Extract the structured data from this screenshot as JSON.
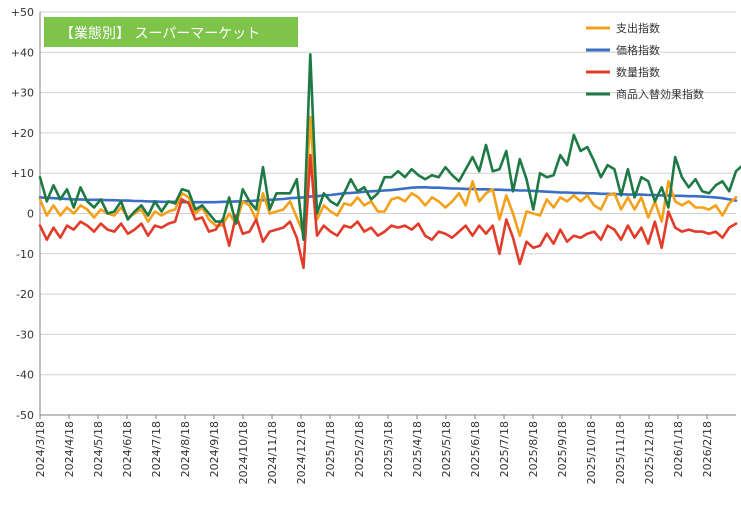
{
  "colors": {
    "spending": "#f5a01a",
    "price": "#3a6fc4",
    "quantity": "#e23b2a",
    "substitution": "#1e7a45",
    "title_box": "#7ec34a",
    "grid": "#d0d0d0",
    "axis": "#808080"
  },
  "chart_data": {
    "type": "line",
    "title": "【業態別】 スーパーマーケット",
    "xlabel": "",
    "ylabel": "",
    "ylim": [
      -50,
      50
    ],
    "y_ticks": [
      -50,
      -40,
      -30,
      -20,
      -10,
      0,
      10,
      20,
      30,
      40,
      50
    ],
    "y_tick_labels": [
      "-50",
      "-40",
      "-30",
      "-20",
      "-10",
      "0",
      "+10",
      "+20",
      "+30",
      "+40",
      "+50"
    ],
    "grid": "horizontal",
    "legend_position": "top-right",
    "x_start": "2024/3/18",
    "x_tick_labels": [
      "2024/3/18",
      "2024/4/18",
      "2024/5/18",
      "2024/6/18",
      "2024/7/18",
      "2024/8/18",
      "2024/9/18",
      "2024/10/18",
      "2024/11/18",
      "2024/12/18",
      "2025/1/18",
      "2025/2/18",
      "2025/3/18",
      "2025/4/18",
      "2025/5/18",
      "2025/6/18",
      "2025/7/18",
      "2025/8/18",
      "2025/9/18",
      "2025/10/18",
      "2025/11/18",
      "2025/12/18",
      "2026/1/18",
      "2026/2/18"
    ],
    "series": [
      {
        "name": "支出指数",
        "color_key": "spending",
        "values": [
          3.5,
          -0.5,
          2.0,
          -0.5,
          1.5,
          0.0,
          2.0,
          1.0,
          -1.0,
          1.0,
          0.0,
          -0.5,
          1.5,
          -1.0,
          0.0,
          1.0,
          -2.0,
          0.5,
          -0.5,
          0.5,
          1.0,
          5.0,
          4.0,
          0.0,
          1.5,
          -1.5,
          -3.0,
          -3.0,
          0.0,
          -2.5,
          3.0,
          2.0,
          -1.5,
          5.0,
          0.0,
          0.5,
          1.0,
          3.0,
          -1.0,
          -5.0,
          24.0,
          -1.5,
          2.0,
          0.5,
          -0.5,
          2.5,
          2.0,
          4.0,
          2.0,
          3.0,
          0.5,
          0.5,
          3.5,
          4.0,
          3.0,
          5.0,
          4.0,
          2.0,
          4.0,
          3.0,
          1.5,
          3.0,
          5.0,
          2.0,
          8.0,
          3.0,
          5.0,
          6.0,
          -1.5,
          4.5,
          0.0,
          -5.5,
          0.5,
          0.0,
          -0.5,
          3.5,
          1.5,
          4.0,
          3.0,
          4.5,
          3.0,
          4.5,
          2.0,
          1.0,
          4.5,
          5.0,
          1.0,
          4.0,
          1.0,
          4.0,
          -1.0,
          3.0,
          -2.0,
          8.0,
          3.0,
          2.0,
          3.0,
          1.5,
          1.5,
          1.0,
          2.0,
          -0.5,
          2.5,
          4.0
        ]
      },
      {
        "name": "価格指数",
        "color_key": "price",
        "values": [
          4.0,
          3.9,
          3.8,
          3.7,
          3.6,
          3.5,
          3.5,
          3.4,
          3.4,
          3.4,
          3.3,
          3.3,
          3.2,
          3.2,
          3.1,
          3.1,
          3.0,
          3.0,
          2.9,
          2.9,
          2.9,
          2.8,
          2.8,
          2.8,
          2.8,
          2.8,
          2.8,
          2.9,
          2.9,
          3.0,
          3.0,
          3.1,
          3.2,
          3.3,
          3.4,
          3.5,
          3.6,
          3.8,
          3.9,
          4.0,
          4.2,
          4.3,
          4.5,
          4.6,
          4.8,
          5.0,
          5.1,
          5.2,
          5.4,
          5.5,
          5.6,
          5.7,
          5.8,
          6.0,
          6.2,
          6.4,
          6.5,
          6.5,
          6.4,
          6.4,
          6.3,
          6.2,
          6.2,
          6.1,
          6.1,
          6.0,
          6.0,
          5.9,
          5.9,
          5.8,
          5.8,
          5.7,
          5.7,
          5.6,
          5.5,
          5.4,
          5.3,
          5.2,
          5.2,
          5.1,
          5.1,
          5.0,
          5.0,
          4.9,
          4.9,
          4.8,
          4.8,
          4.7,
          4.7,
          4.7,
          4.6,
          4.6,
          4.5,
          4.5,
          4.4,
          4.4,
          4.3,
          4.3,
          4.2,
          4.1,
          4.0,
          3.8,
          3.5,
          3.2
        ]
      },
      {
        "name": "数量指数",
        "color_key": "quantity",
        "values": [
          -3.0,
          -6.5,
          -3.5,
          -6.0,
          -3.0,
          -4.0,
          -2.0,
          -3.0,
          -4.5,
          -2.5,
          -4.0,
          -4.5,
          -2.5,
          -5.0,
          -4.0,
          -2.5,
          -5.5,
          -3.0,
          -3.5,
          -2.5,
          -2.0,
          3.5,
          2.5,
          -1.5,
          -1.0,
          -4.5,
          -4.0,
          -1.5,
          -8.0,
          -0.5,
          -5.0,
          -4.5,
          -1.5,
          -7.0,
          -4.5,
          -4.0,
          -3.5,
          -2.0,
          -6.0,
          -13.5,
          14.5,
          -5.5,
          -3.0,
          -4.5,
          -5.5,
          -3.0,
          -3.5,
          -2.0,
          -4.5,
          -3.5,
          -5.5,
          -4.5,
          -3.0,
          -3.5,
          -3.0,
          -4.0,
          -2.5,
          -5.5,
          -6.5,
          -4.5,
          -5.0,
          -6.0,
          -4.5,
          -3.0,
          -5.5,
          -3.0,
          -5.0,
          -3.0,
          -10.0,
          -1.5,
          -6.0,
          -12.5,
          -7.0,
          -8.5,
          -8.0,
          -5.0,
          -7.5,
          -4.0,
          -7.0,
          -5.5,
          -6.0,
          -5.0,
          -4.5,
          -6.5,
          -3.0,
          -4.0,
          -6.5,
          -3.0,
          -6.0,
          -3.5,
          -7.5,
          -2.0,
          -8.5,
          0.5,
          -3.5,
          -4.5,
          -4.0,
          -4.5,
          -4.5,
          -5.0,
          -4.5,
          -6.0,
          -3.5,
          -2.5
        ]
      },
      {
        "name": "商品入替効果指数",
        "color_key": "substitution",
        "values": [
          9.0,
          3.0,
          7.0,
          3.5,
          6.0,
          1.5,
          6.5,
          3.0,
          1.5,
          3.5,
          0.0,
          0.5,
          3.0,
          -1.5,
          0.5,
          2.0,
          -0.5,
          3.0,
          0.5,
          3.0,
          2.5,
          6.0,
          5.5,
          1.0,
          2.0,
          0.0,
          -2.0,
          -2.0,
          4.0,
          -2.5,
          6.0,
          3.0,
          1.0,
          11.5,
          1.0,
          5.0,
          5.0,
          5.0,
          8.5,
          -6.5,
          39.5,
          0.0,
          5.0,
          3.0,
          2.0,
          5.0,
          8.5,
          5.5,
          6.5,
          3.5,
          5.0,
          9.0,
          9.0,
          10.5,
          9.0,
          11.0,
          9.5,
          8.5,
          9.5,
          9.0,
          11.5,
          9.5,
          8.0,
          11.0,
          14.0,
          10.5,
          17.0,
          10.5,
          11.0,
          15.5,
          5.5,
          13.5,
          8.5,
          1.0,
          10.0,
          9.0,
          9.5,
          14.5,
          12.0,
          19.5,
          15.5,
          16.5,
          13.0,
          9.0,
          12.0,
          11.0,
          4.5,
          11.0,
          4.0,
          9.0,
          8.0,
          3.0,
          6.5,
          1.5,
          14.0,
          9.0,
          6.5,
          8.5,
          5.5,
          5.0,
          7.0,
          8.0,
          5.5,
          10.5,
          12.0
        ]
      }
    ]
  }
}
